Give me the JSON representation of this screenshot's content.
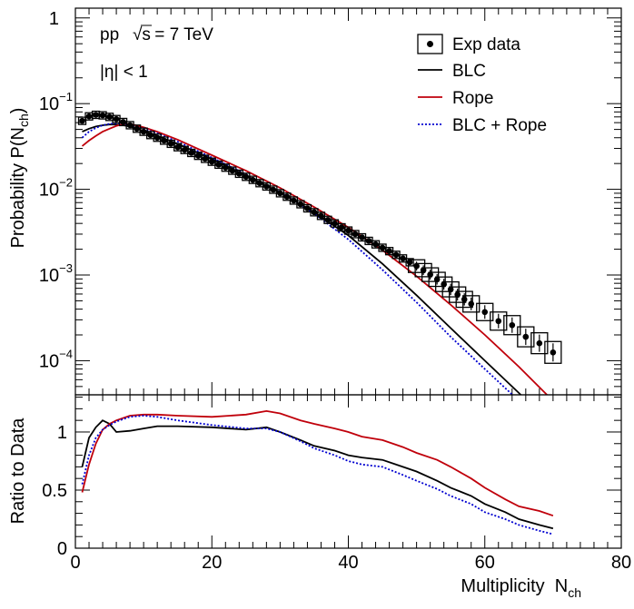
{
  "chart_data": {
    "type": "line",
    "annotations": [
      "pp",
      "√s",
      " = 7 TeV",
      "|η| < 1"
    ],
    "top_panel": {
      "ylabel": "Probability P(N",
      "ylabel_sub": "ch",
      "ylabel_close": ")",
      "yscale": "log",
      "ylim": [
        4e-05,
        1.3
      ],
      "yticks": [
        {
          "value": 1,
          "base": "1",
          "exp": ""
        },
        {
          "value": 0.1,
          "base": "10",
          "exp": "−1"
        },
        {
          "value": 0.01,
          "base": "10",
          "exp": "−2"
        },
        {
          "value": 0.001,
          "base": "10",
          "exp": "−3"
        },
        {
          "value": 0.0001,
          "base": "10",
          "exp": "−4"
        }
      ],
      "legend": [
        {
          "label": "Exp data",
          "style": "marker-box",
          "color": "#000000"
        },
        {
          "label": "BLC",
          "style": "solid",
          "color": "#000000"
        },
        {
          "label": "Rope",
          "style": "solid",
          "color": "#c0000b"
        },
        {
          "label": "BLC + Rope",
          "style": "dotted",
          "color": "#0000d0"
        }
      ],
      "legend_position": "top-right",
      "exp_data": {
        "name": "Exp data",
        "x": [
          1,
          2,
          3,
          4,
          5,
          6,
          7,
          8,
          9,
          10,
          11,
          12,
          13,
          14,
          15,
          16,
          17,
          18,
          19,
          20,
          21,
          22,
          23,
          24,
          25,
          26,
          27,
          28,
          29,
          30,
          31,
          32,
          33,
          34,
          35,
          36,
          37,
          38,
          39,
          40,
          41,
          42,
          43,
          44,
          45,
          46,
          47,
          48,
          49,
          50,
          51,
          52,
          53,
          54,
          55,
          56,
          57,
          58,
          60,
          62,
          64,
          66,
          68,
          70
        ],
        "y": [
          0.063,
          0.071,
          0.074,
          0.073,
          0.07,
          0.066,
          0.061,
          0.056,
          0.051,
          0.047,
          0.043,
          0.04,
          0.037,
          0.034,
          0.031,
          0.0288,
          0.0266,
          0.0246,
          0.0227,
          0.021,
          0.0194,
          0.0179,
          0.0165,
          0.0152,
          0.014,
          0.0129,
          0.0118,
          0.0108,
          0.0099,
          0.009,
          0.0082,
          0.0074,
          0.0067,
          0.006,
          0.0054,
          0.0049,
          0.0044,
          0.004,
          0.0036,
          0.0033,
          0.003,
          0.00275,
          0.0025,
          0.00228,
          0.00208,
          0.0019,
          0.00172,
          0.00156,
          0.00141,
          0.00127,
          0.00114,
          0.00101,
          0.00089,
          0.00078,
          0.00068,
          0.00059,
          0.00052,
          0.00046,
          0.00037,
          0.00029,
          0.00026,
          0.00019,
          0.00016,
          0.000125
        ],
        "box_from_x": 50
      },
      "series": [
        {
          "name": "BLC",
          "color": "#000000",
          "dash": "",
          "x": [
            1,
            2,
            3,
            4,
            5,
            6,
            7,
            8,
            10,
            12,
            15,
            20,
            25,
            30,
            35,
            40,
            45,
            50,
            55,
            60,
            65,
            70
          ],
          "y": [
            0.047,
            0.051,
            0.054,
            0.056,
            0.057,
            0.057,
            0.056,
            0.054,
            0.048,
            0.042,
            0.034,
            0.0225,
            0.0145,
            0.0092,
            0.0054,
            0.0029,
            0.00135,
            0.00058,
            0.00024,
            0.0001,
            4.2e-05,
            1.7e-05
          ]
        },
        {
          "name": "Rope",
          "color": "#c0000b",
          "dash": "",
          "x": [
            1,
            2,
            3,
            4,
            5,
            6,
            7,
            8,
            10,
            12,
            15,
            20,
            25,
            30,
            35,
            40,
            45,
            50,
            55,
            60,
            65,
            70
          ],
          "y": [
            0.032,
            0.037,
            0.042,
            0.047,
            0.051,
            0.055,
            0.058,
            0.058,
            0.053,
            0.047,
            0.038,
            0.025,
            0.0165,
            0.0104,
            0.0062,
            0.0036,
            0.00195,
            0.00097,
            0.00045,
            0.0002,
            8.5e-05,
            3.4e-05
          ]
        },
        {
          "name": "BLC + Rope",
          "color": "#0000d0",
          "dash": "2,2",
          "x": [
            1,
            2,
            3,
            4,
            5,
            6,
            7,
            8,
            10,
            12,
            15,
            20,
            25,
            30,
            35,
            40,
            45,
            50,
            55,
            60,
            65,
            70
          ],
          "y": [
            0.04,
            0.047,
            0.052,
            0.056,
            0.058,
            0.059,
            0.058,
            0.056,
            0.051,
            0.045,
            0.036,
            0.0235,
            0.015,
            0.0093,
            0.0052,
            0.0026,
            0.00115,
            0.00048,
            0.00019,
            8e-05,
            3.4e-05,
            1.4e-05
          ]
        }
      ]
    },
    "bottom_panel": {
      "ylabel": "Ratio to Data",
      "ylim": [
        0,
        1.32
      ],
      "yticks": [
        0,
        0.5,
        1
      ],
      "xlabel": "Multiplicity  N",
      "xlabel_sub": "ch",
      "xlim": [
        0,
        80
      ],
      "xticks": [
        0,
        20,
        40,
        60,
        80
      ],
      "series": [
        {
          "name": "BLC",
          "color": "#000000",
          "x": [
            1,
            2,
            3,
            4,
            5,
            6,
            8,
            10,
            12,
            15,
            20,
            25,
            28,
            30,
            33,
            35,
            38,
            40,
            42,
            45,
            48,
            50,
            53,
            55,
            58,
            60,
            63,
            65,
            68,
            70
          ],
          "y": [
            0.7,
            0.95,
            1.04,
            1.1,
            1.07,
            1.0,
            1.01,
            1.03,
            1.05,
            1.05,
            1.04,
            1.02,
            1.04,
            1.0,
            0.93,
            0.88,
            0.84,
            0.8,
            0.78,
            0.76,
            0.7,
            0.66,
            0.58,
            0.52,
            0.45,
            0.38,
            0.31,
            0.25,
            0.2,
            0.17
          ]
        },
        {
          "name": "Rope",
          "color": "#c0000b",
          "x": [
            1,
            2,
            3,
            4,
            5,
            6,
            8,
            10,
            12,
            15,
            20,
            25,
            28,
            30,
            33,
            35,
            38,
            40,
            42,
            45,
            48,
            50,
            53,
            55,
            58,
            60,
            63,
            65,
            68,
            70
          ],
          "y": [
            0.48,
            0.72,
            0.9,
            1.02,
            1.07,
            1.1,
            1.14,
            1.15,
            1.15,
            1.14,
            1.13,
            1.15,
            1.18,
            1.16,
            1.1,
            1.07,
            1.03,
            1.0,
            0.96,
            0.93,
            0.87,
            0.82,
            0.76,
            0.7,
            0.6,
            0.52,
            0.42,
            0.36,
            0.32,
            0.28
          ]
        },
        {
          "name": "BLC + Rope",
          "color": "#0000d0",
          "x": [
            1,
            2,
            3,
            4,
            5,
            6,
            8,
            10,
            12,
            15,
            20,
            25,
            28,
            30,
            33,
            35,
            38,
            40,
            42,
            45,
            48,
            50,
            53,
            55,
            58,
            60,
            63,
            65,
            68,
            70
          ],
          "y": [
            0.55,
            0.8,
            0.95,
            1.02,
            1.06,
            1.09,
            1.13,
            1.14,
            1.13,
            1.1,
            1.06,
            1.03,
            1.03,
            1.0,
            0.92,
            0.86,
            0.8,
            0.75,
            0.72,
            0.7,
            0.63,
            0.58,
            0.51,
            0.45,
            0.38,
            0.31,
            0.25,
            0.2,
            0.15,
            0.12
          ]
        }
      ]
    }
  }
}
